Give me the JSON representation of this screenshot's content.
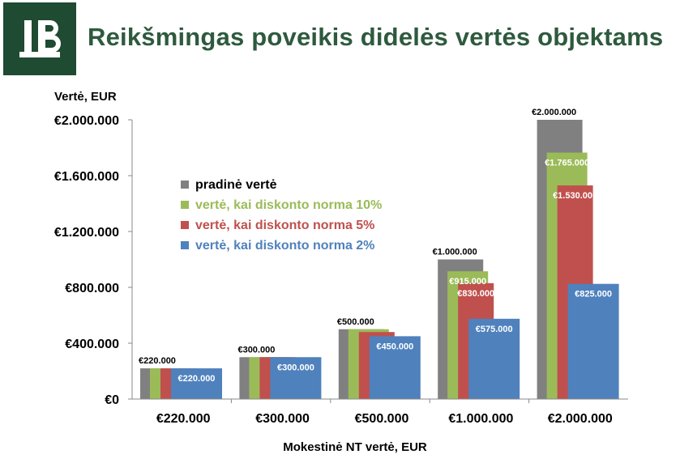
{
  "header": {
    "title": "Reikšmingas poveikis didelės vertės objektams",
    "logo_color": "#1f4b33",
    "title_color": "#2e5a3e"
  },
  "chart_data": {
    "type": "bar",
    "ylabel": "Vertė, EUR",
    "xlabel": "Mokestinė NT vertė, EUR",
    "ylim": [
      0,
      2000000
    ],
    "yticks": [
      "€0",
      "€400.000",
      "€800.000",
      "€1.200.000",
      "€1.600.000",
      "€2.000.000"
    ],
    "ytick_values": [
      0,
      400000,
      800000,
      1200000,
      1600000,
      2000000
    ],
    "categories": [
      "€220.000",
      "€300.000",
      "€500.000",
      "€1.000.000",
      "€2.000.000"
    ],
    "legend_position": "top-left",
    "series": [
      {
        "name": "pradinė vertė",
        "color": "#808080",
        "values": [
          220000,
          300000,
          500000,
          1000000,
          2000000
        ],
        "labels": [
          "€220.000",
          "€300.000",
          "€500.000",
          "€1.000.000",
          "€2.000.000"
        ]
      },
      {
        "name": "vertė, kai diskonto norma 10%",
        "color": "#9bbb59",
        "values": [
          220000,
          300000,
          500000,
          915000,
          1765000
        ],
        "labels": [
          "",
          "",
          "",
          "€915.000",
          "€1.765.000"
        ]
      },
      {
        "name": "vertė, kai diskonto norma 5%",
        "color": "#c0504d",
        "values": [
          220000,
          300000,
          480000,
          830000,
          1530000
        ],
        "labels": [
          "",
          "",
          "",
          "€830.000",
          "€1.530.000"
        ]
      },
      {
        "name": "vertė, kai diskonto norma 2%",
        "color": "#4f81bd",
        "values": [
          220000,
          300000,
          450000,
          575000,
          825000
        ],
        "labels": [
          "€220.000",
          "€300.000",
          "€450.000",
          "€575.000",
          "€825.000"
        ]
      }
    ]
  }
}
